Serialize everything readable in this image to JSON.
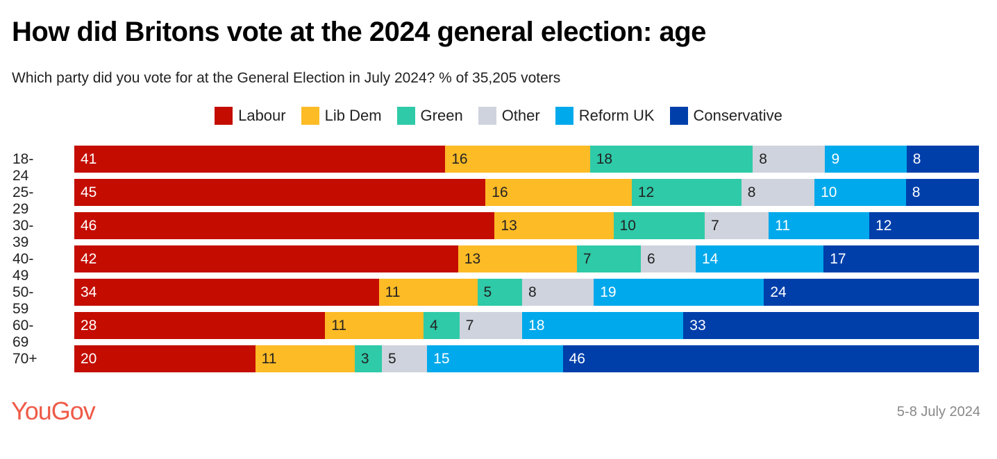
{
  "chart_data": {
    "type": "bar",
    "orientation": "horizontal-stacked",
    "title": "How did Britons vote at the 2024 general election: age",
    "subtitle": "Which party did you vote for at the General Election in July 2024? % of 35,205 voters",
    "categories": [
      "18-24",
      "25-29",
      "30-39",
      "40-49",
      "50-59",
      "60-69",
      "70+"
    ],
    "series": [
      {
        "name": "Labour",
        "color": "#c40d00",
        "text": "#ffffff",
        "values": [
          41,
          45,
          46,
          42,
          34,
          28,
          20
        ]
      },
      {
        "name": "Lib Dem",
        "color": "#fdbb26",
        "text": "#222222",
        "values": [
          16,
          16,
          13,
          13,
          11,
          11,
          11
        ]
      },
      {
        "name": "Green",
        "color": "#2fcaa8",
        "text": "#222222",
        "values": [
          18,
          12,
          10,
          7,
          5,
          4,
          3
        ]
      },
      {
        "name": "Other",
        "color": "#cfd3dd",
        "text": "#222222",
        "values": [
          8,
          8,
          7,
          6,
          8,
          7,
          5
        ]
      },
      {
        "name": "Reform UK",
        "color": "#00a9eb",
        "text": "#ffffff",
        "values": [
          9,
          10,
          11,
          14,
          19,
          18,
          15
        ]
      },
      {
        "name": "Conservative",
        "color": "#003faa",
        "text": "#ffffff",
        "values": [
          8,
          8,
          12,
          17,
          24,
          33,
          46
        ]
      }
    ],
    "legend_position": "top-center",
    "grid": false
  },
  "footer": {
    "logo": "YouGov",
    "date": "5-8 July 2024"
  }
}
